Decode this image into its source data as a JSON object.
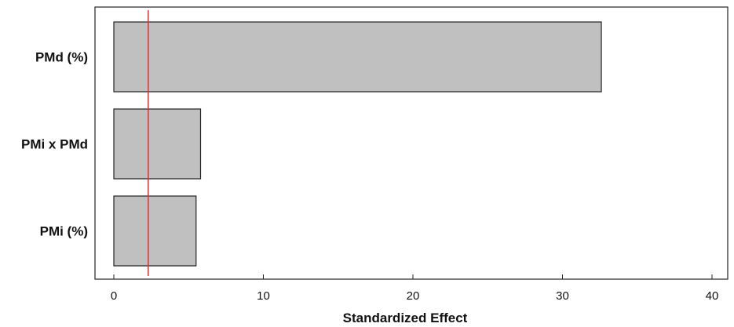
{
  "chart_data": {
    "type": "bar",
    "orientation": "horizontal",
    "categories": [
      "PMd (%)",
      "PMi x PMd",
      "PMi (%)"
    ],
    "values": [
      32.6,
      5.8,
      5.5
    ],
    "xlabel": "Standardized Effect",
    "xlim": [
      0,
      40
    ],
    "xticks": [
      0,
      10,
      20,
      30,
      40
    ],
    "reference_line": 2.3,
    "colors": {
      "bar_fill": "#c0c0c0",
      "bar_stroke": "#222222",
      "reference_line": "#e03030",
      "frame": "#222222"
    },
    "grid": false
  }
}
